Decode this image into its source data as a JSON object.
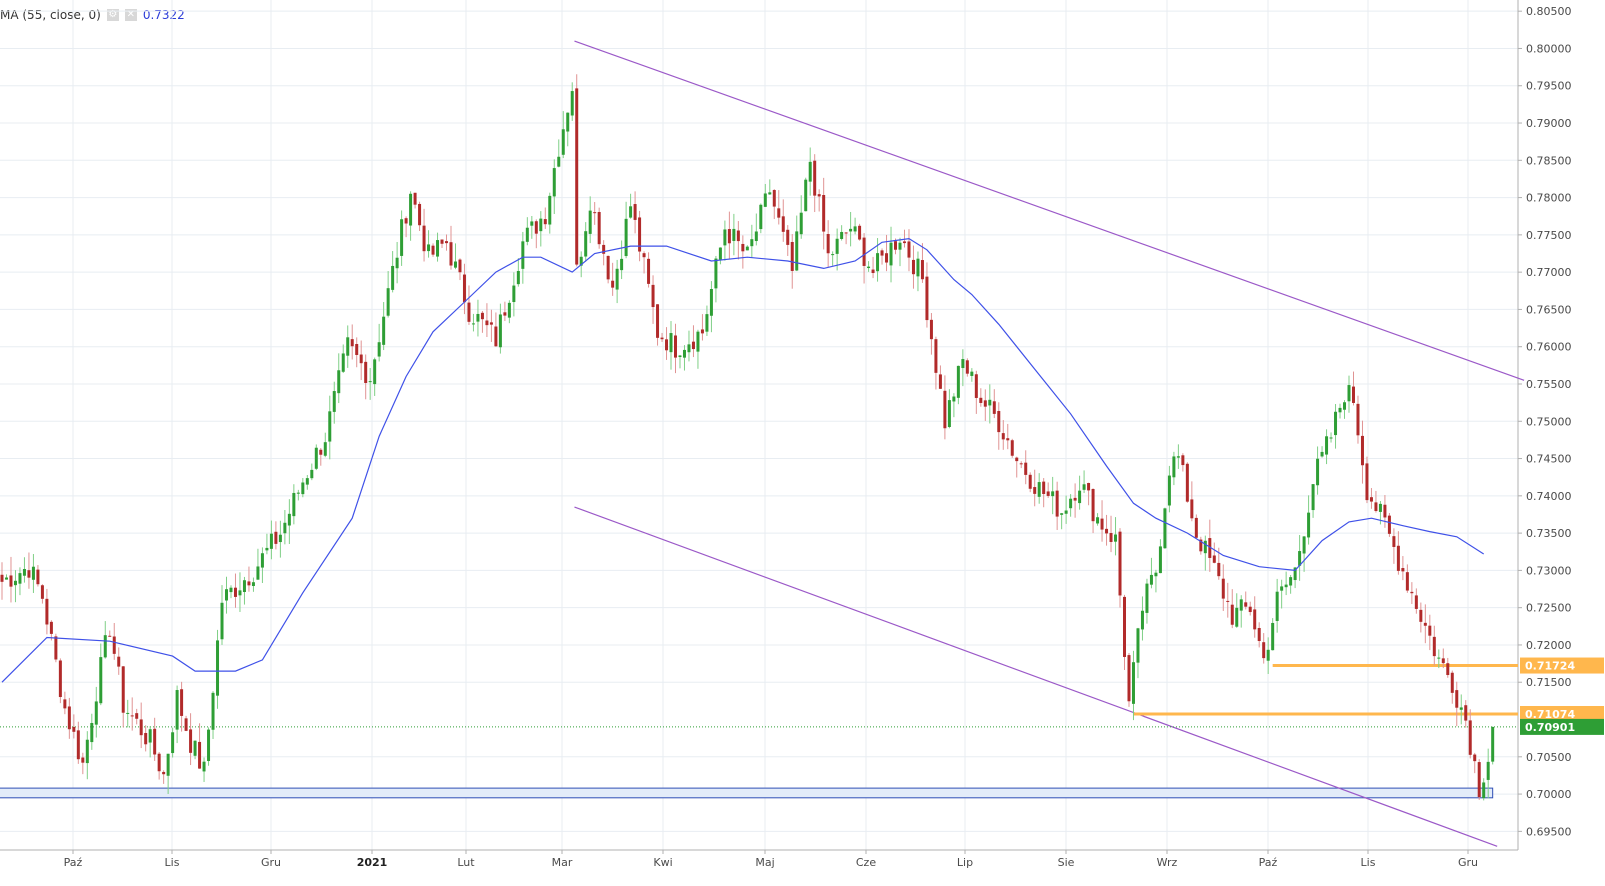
{
  "indicator": {
    "label": "MA (55, close, 0)",
    "value": "0.7322",
    "settings_icon": "gear-icon",
    "close_icon": "close-icon",
    "color": "#3f51e8"
  },
  "chart_data": {
    "type": "candlestick",
    "title": "",
    "xlabel": "",
    "ylabel": "",
    "ylim": [
      0.6925,
      0.8065
    ],
    "grid": true,
    "y_ticks": [
      "0.80500",
      "0.80000",
      "0.79500",
      "0.79000",
      "0.78500",
      "0.78000",
      "0.77500",
      "0.77000",
      "0.76500",
      "0.76000",
      "0.75500",
      "0.75000",
      "0.74500",
      "0.74000",
      "0.73500",
      "0.73000",
      "0.72500",
      "0.72000",
      "0.71500",
      "0.70500",
      "0.70000",
      "0.69500"
    ],
    "x_ticks": [
      {
        "label": "Paź",
        "i": 0
      },
      {
        "label": "Lis",
        "i": 1
      },
      {
        "label": "Gru",
        "i": 2
      },
      {
        "label": "2021",
        "i": 3,
        "bold": true
      },
      {
        "label": "Lut",
        "i": 4
      },
      {
        "label": "Mar",
        "i": 5
      },
      {
        "label": "Kwi",
        "i": 6
      },
      {
        "label": "Maj",
        "i": 7
      },
      {
        "label": "Cze",
        "i": 8
      },
      {
        "label": "Lip",
        "i": 9
      },
      {
        "label": "Sie",
        "i": 10
      },
      {
        "label": "Wrz",
        "i": 11
      },
      {
        "label": "Paź",
        "i": 12
      },
      {
        "label": "Lis",
        "i": 13
      },
      {
        "label": "Gru",
        "i": 14
      }
    ],
    "price_path": [
      [
        0,
        0.7285
      ],
      [
        6,
        0.7305
      ],
      [
        9,
        0.7265
      ],
      [
        14,
        0.7115
      ],
      [
        18,
        0.704
      ],
      [
        21,
        0.714
      ],
      [
        24,
        0.7225
      ],
      [
        27,
        0.712
      ],
      [
        33,
        0.707
      ],
      [
        36,
        0.7025
      ],
      [
        39,
        0.713
      ],
      [
        42,
        0.707
      ],
      [
        45,
        0.703
      ],
      [
        49,
        0.726
      ],
      [
        56,
        0.73
      ],
      [
        62,
        0.735
      ],
      [
        67,
        0.742
      ],
      [
        72,
        0.748
      ],
      [
        77,
        0.76
      ],
      [
        82,
        0.756
      ],
      [
        87,
        0.77
      ],
      [
        91,
        0.781
      ],
      [
        95,
        0.772
      ],
      [
        99,
        0.774
      ],
      [
        104,
        0.765
      ],
      [
        110,
        0.761
      ],
      [
        116,
        0.774
      ],
      [
        121,
        0.778
      ],
      [
        124,
        0.787
      ],
      [
        127,
        0.795
      ],
      [
        128,
        0.77
      ],
      [
        131,
        0.78
      ],
      [
        136,
        0.768
      ],
      [
        140,
        0.779
      ],
      [
        146,
        0.762
      ],
      [
        150,
        0.76
      ],
      [
        156,
        0.762
      ],
      [
        161,
        0.776
      ],
      [
        166,
        0.772
      ],
      [
        171,
        0.781
      ],
      [
        176,
        0.77
      ],
      [
        180,
        0.785
      ],
      [
        184,
        0.772
      ],
      [
        189,
        0.776
      ],
      [
        194,
        0.77
      ],
      [
        200,
        0.775
      ],
      [
        205,
        0.769
      ],
      [
        210,
        0.75
      ],
      [
        214,
        0.758
      ],
      [
        218,
        0.753
      ],
      [
        222,
        0.75
      ],
      [
        226,
        0.745
      ],
      [
        231,
        0.741
      ],
      [
        236,
        0.738
      ],
      [
        240,
        0.742
      ],
      [
        244,
        0.737
      ],
      [
        248,
        0.734
      ],
      [
        251,
        0.712
      ],
      [
        254,
        0.725
      ],
      [
        257,
        0.73
      ],
      [
        260,
        0.744
      ],
      [
        262,
        0.745
      ],
      [
        266,
        0.735
      ],
      [
        270,
        0.73
      ],
      [
        274,
        0.724
      ],
      [
        278,
        0.725
      ],
      [
        281,
        0.718
      ],
      [
        284,
        0.726
      ],
      [
        288,
        0.73
      ],
      [
        292,
        0.742
      ],
      [
        296,
        0.748
      ],
      [
        299,
        0.754
      ],
      [
        301,
        0.753
      ],
      [
        304,
        0.741
      ],
      [
        308,
        0.736
      ],
      [
        312,
        0.73
      ],
      [
        316,
        0.724
      ],
      [
        320,
        0.718
      ],
      [
        323,
        0.715
      ],
      [
        326,
        0.71
      ],
      [
        329,
        0.701
      ],
      [
        331,
        0.705
      ],
      [
        332,
        0.709
      ]
    ],
    "ma55_path": [
      [
        0,
        0.715
      ],
      [
        10,
        0.721
      ],
      [
        24,
        0.7205
      ],
      [
        38,
        0.7185
      ],
      [
        43,
        0.7165
      ],
      [
        52,
        0.7165
      ],
      [
        58,
        0.718
      ],
      [
        67,
        0.727
      ],
      [
        78,
        0.737
      ],
      [
        84,
        0.748
      ],
      [
        90,
        0.756
      ],
      [
        96,
        0.762
      ],
      [
        103,
        0.766
      ],
      [
        110,
        0.77
      ],
      [
        116,
        0.772
      ],
      [
        120,
        0.772
      ],
      [
        127,
        0.77
      ],
      [
        132,
        0.7725
      ],
      [
        140,
        0.7735
      ],
      [
        148,
        0.7735
      ],
      [
        158,
        0.7715
      ],
      [
        166,
        0.772
      ],
      [
        175,
        0.7715
      ],
      [
        183,
        0.7705
      ],
      [
        190,
        0.7715
      ],
      [
        196,
        0.774
      ],
      [
        202,
        0.7745
      ],
      [
        206,
        0.773
      ],
      [
        212,
        0.769
      ],
      [
        216,
        0.767
      ],
      [
        222,
        0.763
      ],
      [
        230,
        0.757
      ],
      [
        238,
        0.751
      ],
      [
        246,
        0.744
      ],
      [
        252,
        0.739
      ],
      [
        257,
        0.737
      ],
      [
        264,
        0.735
      ],
      [
        272,
        0.732
      ],
      [
        280,
        0.7305
      ],
      [
        288,
        0.73
      ],
      [
        294,
        0.734
      ],
      [
        300,
        0.7365
      ],
      [
        305,
        0.737
      ],
      [
        312,
        0.736
      ],
      [
        318,
        0.7352
      ],
      [
        324,
        0.7345
      ],
      [
        330,
        0.7322
      ]
    ],
    "annotations": {
      "channel_upper": [
        [
          127.5,
          0.801
        ],
        [
          339,
          0.7555
        ]
      ],
      "channel_lower": [
        [
          127.5,
          0.7385
        ],
        [
          333,
          0.693
        ]
      ],
      "support_zone": {
        "low": 0.6995,
        "high": 0.7008,
        "from": -5,
        "to": 332
      },
      "resistance_1": {
        "value": 0.71724,
        "label": "0.71724",
        "from": 283,
        "color": "#ffb74d"
      },
      "resistance_2": {
        "value": 0.71074,
        "label": "0.71074",
        "from": 252,
        "color": "#ffb74d"
      },
      "last_price": {
        "value": 0.70901,
        "label": "0.70901",
        "color": "#2e9e35"
      }
    },
    "colors": {
      "up": "#2e9e35",
      "down": "#b12a2a",
      "wick_up": "#7fcf86",
      "wick_down": "#e09393",
      "channel": "#9b59c8",
      "support_zone_fill": "#e3ecf9",
      "support_zone_stroke": "#2f4fb5",
      "grid": "#e8edf2"
    }
  }
}
